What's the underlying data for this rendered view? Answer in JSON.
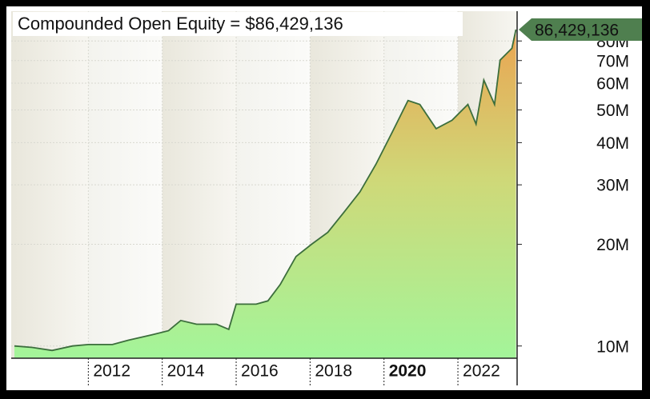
{
  "chart_data": {
    "type": "area",
    "title": "Compounded Open Equity = $86,429,136",
    "x": [
      2010.0,
      2010.48,
      2011.02,
      2011.57,
      2012.0,
      2012.65,
      2013.08,
      2013.73,
      2014.17,
      2014.5,
      2014.93,
      2015.47,
      2015.8,
      2016.0,
      2016.54,
      2016.86,
      2017.19,
      2017.62,
      2018.04,
      2018.48,
      2018.92,
      2019.35,
      2019.78,
      2020.22,
      2020.65,
      2020.97,
      2021.41,
      2021.84,
      2022.27,
      2022.49,
      2022.7,
      2022.99,
      2023.14,
      2023.46,
      2023.57
    ],
    "series": [
      {
        "color": "#3c6e3c",
        "values": [
          10000000,
          9900000,
          9700000,
          10000000,
          10100000,
          10100000,
          10400000,
          10800000,
          11100000,
          11900000,
          11600000,
          11600000,
          11200000,
          13300000,
          13300000,
          13600000,
          15200000,
          18400000,
          20000000,
          21700000,
          24900000,
          28600000,
          34500000,
          42900000,
          53300000,
          51900000,
          44000000,
          46600000,
          51900000,
          45400000,
          61300000,
          51900000,
          70200000,
          76100000,
          86429136
        ]
      }
    ],
    "last_value": {
      "value": 86429136,
      "label": "86,429,136"
    },
    "xlim": [
      2010.0,
      2023.58
    ],
    "xticks": [
      2012,
      2014,
      2016,
      2018,
      2020,
      2022
    ],
    "xtick_bold": [
      2020
    ],
    "ylim": [
      9200000,
      98000000
    ],
    "log_y": true,
    "yticks": [
      {
        "value": 10000000,
        "label": "10M"
      },
      {
        "value": 20000000,
        "label": "20M"
      },
      {
        "value": 30000000,
        "label": "30M"
      },
      {
        "value": 40000000,
        "label": "40M"
      },
      {
        "value": 50000000,
        "label": "50M"
      },
      {
        "value": 60000000,
        "label": "60M"
      },
      {
        "value": 70000000,
        "label": "70M"
      },
      {
        "value": 80000000,
        "label": "80M"
      }
    ],
    "grid": true
  }
}
